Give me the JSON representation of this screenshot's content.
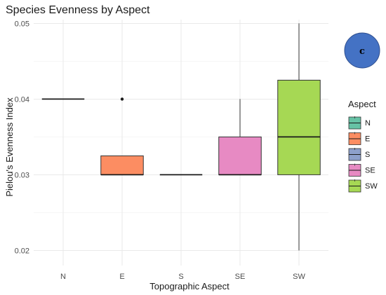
{
  "chart_data": {
    "type": "box",
    "title": "Species Evenness by Aspect",
    "xlabel": "Topographic Aspect",
    "ylabel": "Pielou's Evenness Index",
    "ylim": [
      0.018,
      0.0505
    ],
    "yticks": [
      "0.02",
      "0.03",
      "0.04",
      "0.05"
    ],
    "ytick_values": [
      0.02,
      0.03,
      0.04,
      0.05
    ],
    "categories": [
      "N",
      "E",
      "S",
      "SE",
      "SW"
    ],
    "series": [
      {
        "category": "N",
        "color": "#66C2A5",
        "q1": 0.04,
        "median": 0.04,
        "q3": 0.04,
        "whisker_low": 0.04,
        "whisker_high": 0.04,
        "outliers": []
      },
      {
        "category": "E",
        "color": "#FC8D62",
        "q1": 0.03,
        "median": 0.03,
        "q3": 0.0325,
        "whisker_low": 0.03,
        "whisker_high": 0.0325,
        "outliers": [
          0.04
        ]
      },
      {
        "category": "S",
        "color": "#8DA0CB",
        "q1": 0.03,
        "median": 0.03,
        "q3": 0.03,
        "whisker_low": 0.03,
        "whisker_high": 0.03,
        "outliers": []
      },
      {
        "category": "SE",
        "color": "#E78AC3",
        "q1": 0.03,
        "median": 0.03,
        "q3": 0.035,
        "whisker_low": 0.03,
        "whisker_high": 0.04,
        "outliers": []
      },
      {
        "category": "SW",
        "color": "#A6D854",
        "q1": 0.03,
        "median": 0.035,
        "q3": 0.0425,
        "whisker_low": 0.02,
        "whisker_high": 0.05,
        "outliers": []
      }
    ],
    "grid": true,
    "legend": {
      "title": "Aspect",
      "position": "right",
      "entries": [
        "N",
        "E",
        "S",
        "SE",
        "SW"
      ]
    }
  },
  "badge": {
    "label": "c",
    "color": "#4472C4"
  }
}
